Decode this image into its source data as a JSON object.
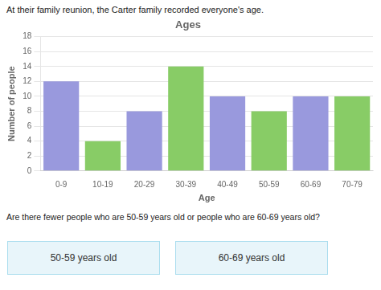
{
  "chart_data": {
    "type": "bar",
    "title": "Ages",
    "x_label": "Age",
    "y_label": "Number of people",
    "categories": [
      "0-9",
      "10-19",
      "20-29",
      "30-39",
      "40-49",
      "50-59",
      "60-69",
      "70-79"
    ],
    "values": [
      12,
      4,
      8,
      14,
      10,
      8,
      10,
      10
    ],
    "colors": [
      "#9999dd",
      "#88cc66",
      "#9999dd",
      "#88cc66",
      "#9999dd",
      "#88cc66",
      "#9999dd",
      "#88cc66"
    ],
    "ylim": [
      0,
      18
    ],
    "yticks": [
      0,
      2,
      4,
      6,
      8,
      10,
      12,
      14,
      16,
      18
    ],
    "grid": true,
    "annotations": [
      "At their family reunion, the Carter family recorded everyone's age.",
      "Are there fewer people who are 50-59 years old or people who are 60-69 years old?",
      "50-59 years old",
      "60-69 years old"
    ]
  }
}
